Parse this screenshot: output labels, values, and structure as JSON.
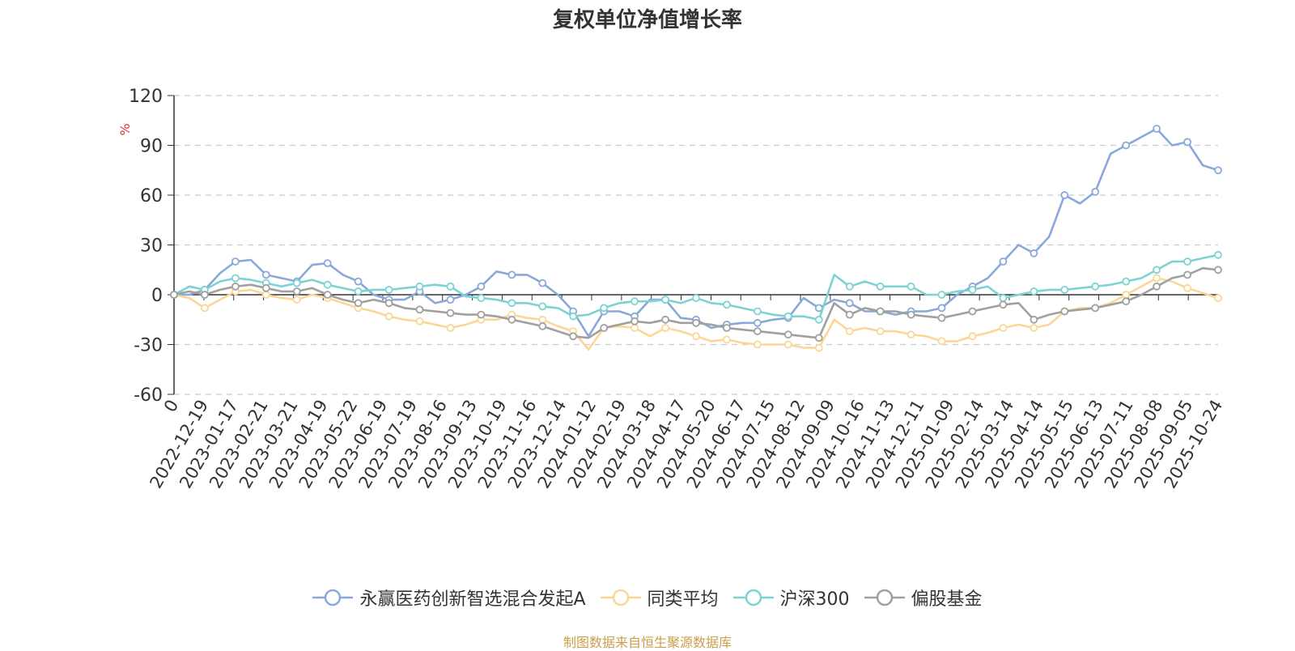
{
  "chart_data": {
    "type": "line",
    "title": "复权单位净值增长率",
    "ylabel": "%",
    "ylim": [
      -60,
      120
    ],
    "yticks": [
      120,
      90,
      60,
      30,
      0,
      -30,
      -60
    ],
    "grid": true,
    "legend_position": "bottom",
    "x_tick_labels": [
      "0",
      "2022-12-19",
      "2023-01-17",
      "2023-02-21",
      "2023-03-21",
      "2023-04-19",
      "2023-05-22",
      "2023-06-19",
      "2023-07-19",
      "2023-08-16",
      "2023-09-13",
      "2023-10-19",
      "2023-11-16",
      "2023-12-14",
      "2024-01-12",
      "2024-02-19",
      "2024-03-18",
      "2024-04-17",
      "2024-05-20",
      "2024-06-17",
      "2024-07-15",
      "2024-08-12",
      "2024-09-09",
      "2024-10-16",
      "2024-11-13",
      "2024-12-11",
      "2025-01-09",
      "2025-02-14",
      "2025-03-14",
      "2025-04-14",
      "2025-05-15",
      "2025-06-13",
      "2025-07-11",
      "2025-08-08",
      "2025-09-05",
      "2025-10-24"
    ],
    "series": [
      {
        "name": "永赢医药创新智选混合发起A",
        "color": "#8aa8d9",
        "values": [
          0,
          0,
          3,
          13,
          20,
          21,
          12,
          10,
          8,
          18,
          19,
          12,
          8,
          0,
          -3,
          -3,
          2,
          -5,
          -3,
          0,
          5,
          14,
          12,
          12,
          7,
          0,
          -10,
          -25,
          -10,
          -10,
          -13,
          -3,
          -3,
          -14,
          -15,
          -20,
          -18,
          -17,
          -17,
          -15,
          -14,
          -2,
          -8,
          -3,
          -5,
          -10,
          -10,
          -12,
          -10,
          -10,
          -8,
          0,
          5,
          10,
          20,
          30,
          25,
          35,
          60,
          55,
          62,
          85,
          90,
          95,
          100,
          90,
          92,
          78,
          75
        ]
      },
      {
        "name": "同类平均",
        "color": "#fad797",
        "values": [
          0,
          -2,
          -8,
          -3,
          2,
          3,
          0,
          -2,
          -3,
          0,
          -2,
          -5,
          -8,
          -10,
          -13,
          -15,
          -16,
          -18,
          -20,
          -18,
          -15,
          -15,
          -12,
          -14,
          -15,
          -19,
          -22,
          -33,
          -20,
          -19,
          -20,
          -25,
          -20,
          -22,
          -25,
          -28,
          -27,
          -29,
          -30,
          -30,
          -30,
          -32,
          -32,
          -15,
          -22,
          -20,
          -22,
          -22,
          -24,
          -25,
          -28,
          -28,
          -25,
          -23,
          -20,
          -18,
          -20,
          -18,
          -10,
          -8,
          -8,
          -5,
          0,
          5,
          10,
          8,
          4,
          1,
          -2
        ]
      },
      {
        "name": "沪深300",
        "color": "#7dd3d4",
        "values": [
          0,
          5,
          3,
          8,
          10,
          9,
          7,
          5,
          7,
          9,
          6,
          4,
          2,
          3,
          3,
          4,
          5,
          6,
          5,
          -1,
          -2,
          -3,
          -5,
          -5,
          -7,
          -8,
          -13,
          -12,
          -8,
          -5,
          -4,
          -4,
          -3,
          -5,
          -2,
          -5,
          -6,
          -8,
          -10,
          -12,
          -13,
          -13,
          -15,
          12,
          5,
          8,
          5,
          5,
          5,
          0,
          0,
          2,
          3,
          5,
          -2,
          0,
          2,
          3,
          3,
          4,
          5,
          6,
          8,
          10,
          15,
          20,
          20,
          22,
          24
        ]
      },
      {
        "name": "偏股基金",
        "color": "#a0a0a0",
        "values": [
          0,
          2,
          0,
          3,
          5,
          6,
          4,
          2,
          2,
          4,
          0,
          -3,
          -5,
          -3,
          -5,
          -8,
          -9,
          -10,
          -11,
          -12,
          -12,
          -13,
          -15,
          -17,
          -19,
          -22,
          -25,
          -26,
          -20,
          -18,
          -16,
          -17,
          -15,
          -17,
          -17,
          -18,
          -20,
          -21,
          -22,
          -23,
          -24,
          -25,
          -26,
          -5,
          -12,
          -8,
          -10,
          -10,
          -12,
          -13,
          -14,
          -12,
          -10,
          -8,
          -6,
          -5,
          -15,
          -12,
          -10,
          -9,
          -8,
          -6,
          -4,
          0,
          5,
          10,
          12,
          16,
          15
        ]
      }
    ]
  },
  "source_note": "制图数据来自恒生聚源数据库"
}
